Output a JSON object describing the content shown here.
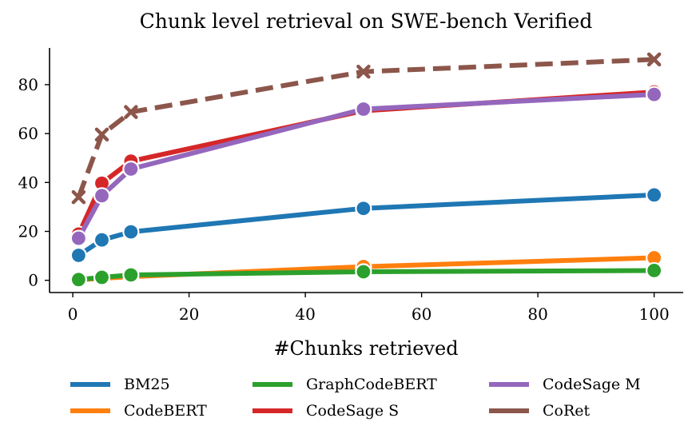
{
  "chart_data": {
    "type": "line",
    "title": "Chunk level retrieval on SWE-bench Verified",
    "xlabel": "#Chunks retrieved",
    "ylabel": "",
    "x": [
      1,
      5,
      10,
      50,
      100
    ],
    "xlim": [
      -4,
      105
    ],
    "ylim": [
      -5,
      95
    ],
    "xticks": [
      0,
      20,
      40,
      60,
      80,
      100
    ],
    "yticks": [
      0,
      20,
      40,
      60,
      80
    ],
    "grid": false,
    "legend_placement": "bottom",
    "series": [
      {
        "name": "BM25",
        "color": "#1f77b4",
        "marker": "circle",
        "dashed": false,
        "values": [
          10.2,
          16.5,
          19.8,
          29.4,
          34.9
        ]
      },
      {
        "name": "CodeBERT",
        "color": "#ff7f0e",
        "marker": "circle",
        "dashed": false,
        "values": [
          0.2,
          0.8,
          1.5,
          5.6,
          9.2
        ]
      },
      {
        "name": "GraphCodeBERT",
        "color": "#2ca02c",
        "marker": "circle",
        "dashed": false,
        "values": [
          0.3,
          1.2,
          2.2,
          3.5,
          4.0
        ]
      },
      {
        "name": "CodeSage S",
        "color": "#d62728",
        "marker": "circle",
        "dashed": false,
        "values": [
          18.9,
          39.7,
          48.7,
          69.3,
          77.0
        ]
      },
      {
        "name": "CodeSage M",
        "color": "#9467bd",
        "marker": "circle",
        "dashed": false,
        "values": [
          17.2,
          34.6,
          45.5,
          70.0,
          76.0
        ]
      },
      {
        "name": "CoRet",
        "color": "#8c564b",
        "marker": "x",
        "dashed": true,
        "values": [
          34.0,
          59.6,
          68.8,
          85.3,
          90.3
        ]
      }
    ],
    "legend_order": [
      "BM25",
      "CodeBERT",
      "GraphCodeBERT",
      "CodeSage S",
      "CodeSage M",
      "CoRet"
    ]
  }
}
